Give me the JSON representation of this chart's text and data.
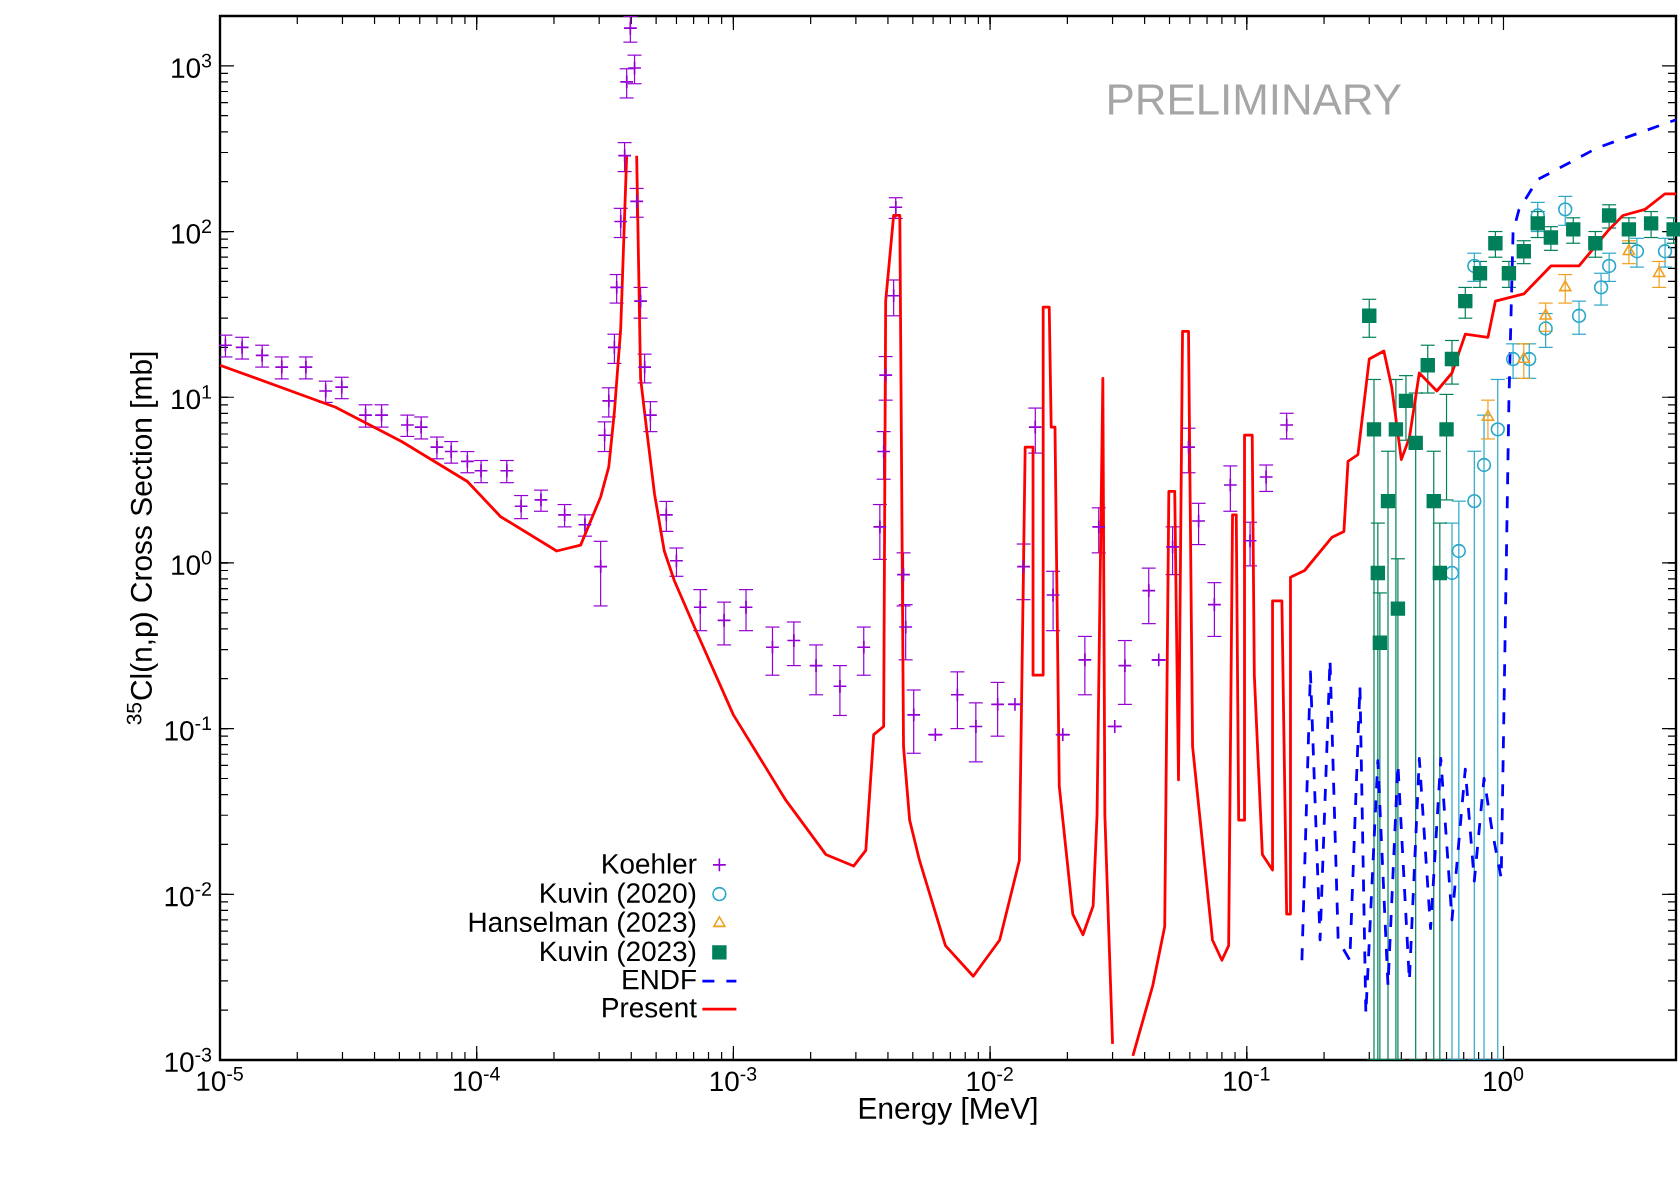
{
  "chart_data": {
    "type": "line",
    "xlabel": "Energy [MeV]",
    "ylabel": "$^{35}$Cl(n,p) Cross Section [mb]",
    "annotations": [
      "PRELIMINARY"
    ],
    "log": "xy",
    "xlim": [
      1e-05,
      4.7
    ],
    "ylim": [
      0.001,
      2000
    ],
    "xticks": [
      {
        "value": 1e-05,
        "label": "10$^{-5}$"
      },
      {
        "value": 0.0001,
        "label": "10$^{-4}$"
      },
      {
        "value": 0.001,
        "label": "10$^{-3}$"
      },
      {
        "value": 0.01,
        "label": "10$^{-2}$"
      },
      {
        "value": 0.1,
        "label": "10$^{-1}$"
      },
      {
        "value": 1,
        "label": "10$^{0}$"
      }
    ],
    "yticks": [
      {
        "value": 0.001,
        "label": "10$^{-3}$"
      },
      {
        "value": 0.01,
        "label": "10$^{-2}$"
      },
      {
        "value": 0.1,
        "label": "10$^{-1}$"
      },
      {
        "value": 1,
        "label": "10$^{0}$"
      },
      {
        "value": 10,
        "label": "10$^{1}$"
      },
      {
        "value": 100,
        "label": "10$^{2}$"
      },
      {
        "value": 1000,
        "label": "10$^{3}$"
      }
    ],
    "grid": false,
    "legend": "bottom left",
    "series": [
      {
        "name": "Koehler",
        "type": "scatter",
        "marker": "cross",
        "color": "#9400d3",
        "x": [
          1.05e-05,
          1.22e-05,
          1.46e-05,
          1.74e-05,
          2.16e-05,
          2.58e-05,
          2.98e-05,
          3.69e-05,
          4.26e-05,
          5.37e-05,
          6.08e-05,
          7e-05,
          7.96e-05,
          9.2e-05,
          0.000104,
          0.000131,
          0.000149,
          0.000178,
          0.00022,
          0.000264,
          0.000304,
          0.000315,
          0.000327,
          0.000344,
          0.000351,
          0.000364,
          0.000377,
          0.000384,
          0.000397,
          0.000412,
          0.00042,
          0.000435,
          0.000451,
          0.000475,
          0.000548,
          0.0006,
          0.000743,
          0.00092,
          0.00112,
          0.00142,
          0.00172,
          0.0021,
          0.0026,
          0.00322,
          0.00372,
          0.00385,
          0.00392,
          0.00421,
          0.00429,
          0.0046,
          0.00469,
          0.00504,
          0.00612,
          0.00746,
          0.0088,
          0.0107,
          0.0125,
          0.0135,
          0.015,
          0.0176,
          0.0192,
          0.0234,
          0.0265,
          0.0306,
          0.0335,
          0.0415,
          0.0454,
          0.0514,
          0.0593,
          0.0649,
          0.0748,
          0.0863,
          0.103,
          0.119,
          0.143
        ],
        "values": [
          20.6,
          20,
          17.9,
          15.2,
          15.2,
          10.9,
          11.5,
          7.8,
          7.8,
          6.8,
          6.6,
          5.0,
          4.7,
          4.1,
          3.6,
          3.6,
          2.2,
          2.4,
          1.95,
          1.7,
          0.95,
          5.9,
          9.5,
          20,
          46,
          115,
          287,
          800,
          1690,
          970,
          152,
          38,
          15.2,
          7.8,
          1.95,
          1.03,
          0.54,
          0.45,
          0.54,
          0.31,
          0.34,
          0.24,
          0.18,
          0.31,
          1.65,
          4.7,
          13.6,
          41,
          140,
          0.85,
          0.41,
          0.121,
          0.092,
          0.16,
          0.103,
          0.14,
          0.14,
          0.95,
          6.6,
          0.64,
          0.092,
          0.26,
          1.65,
          0.103,
          0.24,
          0.68,
          0.26,
          1.25,
          5.0,
          1.79,
          0.56,
          2.95,
          1.36,
          3.3,
          6.8
        ],
        "errors": [
          3.1,
          3.0,
          2.7,
          2.3,
          2.3,
          1.6,
          1.7,
          1.2,
          1.2,
          1.0,
          1.0,
          0.75,
          0.7,
          0.6,
          0.55,
          0.55,
          0.35,
          0.35,
          0.3,
          0.25,
          0.4,
          1.2,
          1.9,
          4,
          9,
          23,
          57,
          160,
          300,
          190,
          30,
          8,
          3,
          1.6,
          0.4,
          0.2,
          0.15,
          0.13,
          0.15,
          0.1,
          0.1,
          0.08,
          0.06,
          0.1,
          0.6,
          1.5,
          4,
          10,
          20,
          0.3,
          0.15,
          0.05,
          null,
          0.06,
          0.04,
          0.05,
          null,
          0.35,
          2,
          0.25,
          null,
          0.1,
          0.5,
          null,
          0.1,
          0.25,
          null,
          0.4,
          1.5,
          0.5,
          0.2,
          0.9,
          0.4,
          0.6,
          1.2
        ]
      },
      {
        "name": "Kuvin (2020)",
        "type": "scatter",
        "marker": "circle",
        "color": "#2aa7c9",
        "x": [
          0.63,
          0.67,
          0.77,
          0.77,
          0.84,
          0.93,
          0.95,
          1.09,
          1.26,
          1.36,
          1.46,
          1.74,
          1.97,
          2.4,
          2.58,
          3.31,
          4.26
        ],
        "values": [
          0.87,
          1.18,
          62,
          2.36,
          3.9,
          null,
          6.4,
          17,
          17,
          125,
          26,
          136,
          31,
          46,
          62,
          76,
          76
        ],
        "errors": [
          0.869,
          1.179,
          12,
          2.359,
          3.899,
          null,
          6.399,
          4,
          4,
          25,
          6,
          27,
          7,
          10,
          12,
          15,
          15
        ]
      },
      {
        "name": "Hanselman (2023)",
        "type": "scatter",
        "marker": "triangle",
        "color": "#f0a020",
        "x": [
          0.87,
          1.2,
          1.46,
          1.74,
          3.08,
          4.04
        ],
        "values": [
          7.6,
          17,
          31,
          46,
          76,
          56
        ],
        "errors": [
          2,
          4,
          6,
          9,
          12,
          10
        ]
      },
      {
        "name": "Kuvin (2023)",
        "type": "scatter",
        "marker": "square",
        "color": "#00805a",
        "x": [
          0.3,
          0.313,
          0.324,
          0.33,
          0.355,
          0.381,
          0.388,
          0.417,
          0.455,
          0.507,
          0.535,
          0.565,
          0.6,
          0.63,
          0.71,
          0.81,
          0.93,
          1.05,
          1.2,
          1.36,
          1.53,
          1.87,
          2.28,
          2.58,
          3.08,
          3.76,
          4.6
        ],
        "values": [
          31,
          6.4,
          0.87,
          0.33,
          2.36,
          6.4,
          0.53,
          9.5,
          5.3,
          15.6,
          2.36,
          0.87,
          6.4,
          17,
          38,
          56,
          85,
          56,
          76,
          112,
          92,
          103,
          85,
          125,
          103,
          112,
          103
        ],
        "errors": [
          8,
          6.399,
          0.869,
          0.329,
          2.359,
          6.399,
          0.529,
          4,
          5.299,
          5,
          2.359,
          0.869,
          4,
          5,
          8,
          10,
          15,
          10,
          12,
          20,
          15,
          18,
          15,
          20,
          18,
          20,
          18
        ]
      },
      {
        "name": "ENDF",
        "line_style": "dashed",
        "color": "#0000ff",
        "x": [
          0.164,
          0.177,
          0.193,
          0.211,
          0.227,
          0.252,
          0.276,
          0.291,
          0.324,
          0.355,
          0.388,
          0.43,
          0.47,
          0.52,
          0.57,
          0.63,
          0.71,
          0.77,
          0.84,
          0.9,
          0.98,
          1.02,
          1.05,
          1.09,
          1.15,
          1.36,
          2.32,
          4.7
        ],
        "values": [
          0.004,
          0.22,
          0.0053,
          0.26,
          0.0053,
          0.004,
          0.18,
          0.0019,
          0.064,
          0.0028,
          0.061,
          0.003,
          0.066,
          0.0062,
          0.066,
          0.007,
          0.057,
          0.012,
          0.05,
          0.025,
          0.0125,
          0.59,
          9.5,
          100,
          136,
          206,
          320,
          473
        ]
      },
      {
        "name": "Present",
        "line_style": "solid",
        "color": "#ff0000",
        "x": [
          1e-05,
          2.82e-05,
          5.1e-05,
          9.2e-05,
          0.000124,
          0.000205,
          0.000254,
          0.000304,
          0.000327,
          0.000344,
          0.000364,
          0.000384,
          0.000391,
          0.000412,
          0.00042,
          0.000435,
          0.000458,
          0.000493,
          0.000538,
          0.000589,
          0.000705,
          0.001,
          0.0016,
          0.00229,
          0.00294,
          0.00328,
          0.00352,
          0.00385,
          0.00392,
          0.00421,
          0.00445,
          0.0046,
          0.00486,
          0.00531,
          0.0067,
          0.0086,
          0.0109,
          0.013,
          0.0137,
          0.0147,
          0.0147,
          0.0161,
          0.0161,
          0.017,
          0.0173,
          0.0179,
          0.0186,
          0.021,
          0.023,
          0.0252,
          0.0261,
          0.0275,
          0.028,
          0.03,
          0.0335,
          0.036,
          0.043,
          0.0479,
          0.0497,
          0.0524,
          0.0542,
          0.0562,
          0.0593,
          0.0615,
          0.0735,
          0.08,
          0.085,
          0.088,
          0.091,
          0.093,
          0.098,
          0.098,
          0.105,
          0.107,
          0.115,
          0.126,
          0.126,
          0.137,
          0.143,
          0.148,
          0.148,
          0.168,
          0.215,
          0.239,
          0.248,
          0.271,
          0.3,
          0.342,
          0.367,
          0.4,
          0.43,
          0.47,
          0.55,
          0.63,
          0.71,
          0.87,
          0.93,
          1.2,
          1.53,
          1.97,
          2.58,
          2.92,
          3.56,
          4.26,
          4.7
        ],
        "values": [
          15.6,
          8.7,
          5.4,
          3.1,
          1.9,
          1.18,
          1.28,
          2.5,
          3.8,
          8.2,
          26,
          287,
          null,
          null,
          287,
          13,
          6.6,
          2.6,
          1.18,
          0.78,
          0.41,
          0.121,
          0.037,
          0.0174,
          0.0148,
          0.0184,
          0.092,
          0.103,
          38,
          125,
          125,
          0.078,
          0.028,
          0.016,
          0.0049,
          0.0032,
          0.0053,
          0.016,
          5.0,
          5.0,
          0.21,
          0.21,
          35,
          35,
          6.6,
          6.6,
          0.045,
          0.0076,
          0.0057,
          0.0085,
          0.03,
          13,
          0.03,
          0.00125,
          null,
          0.00106,
          0.0028,
          0.0064,
          2.7,
          2.7,
          0.049,
          25,
          25,
          0.078,
          0.0053,
          0.004,
          0.0049,
          1.95,
          1.95,
          0.028,
          0.028,
          5.9,
          5.9,
          0.21,
          0.0174,
          0.014,
          0.59,
          0.59,
          0.0076,
          0.0076,
          0.82,
          0.9,
          1.43,
          1.55,
          4.1,
          4.5,
          17,
          19,
          11.5,
          4.2,
          5.7,
          14,
          10.9,
          14,
          24,
          23,
          38,
          42,
          62,
          62,
          103,
          125,
          136,
          169,
          169
        ]
      }
    ]
  }
}
